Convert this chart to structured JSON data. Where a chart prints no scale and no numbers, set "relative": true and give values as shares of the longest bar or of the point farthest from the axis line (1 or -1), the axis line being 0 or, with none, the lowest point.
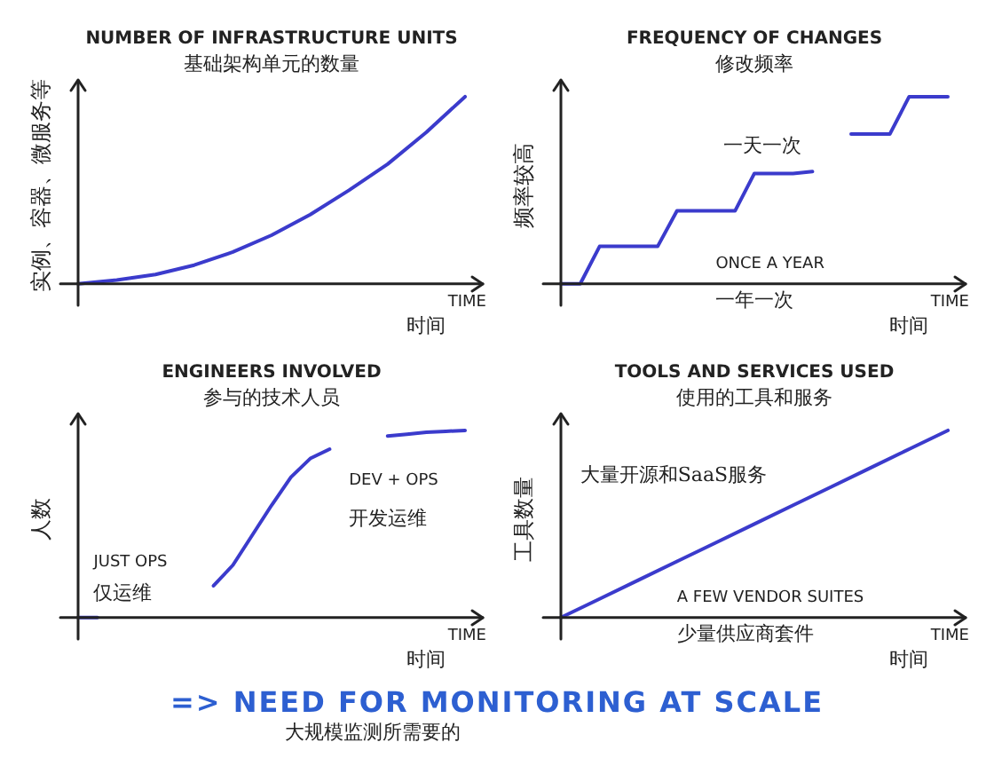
{
  "chart_data": [
    {
      "type": "line",
      "title": "NUMBER OF INFRASTRUCTURE UNITS",
      "subtitle": "基础架构单元的数量",
      "ylabel": "实例、容器、微服务等",
      "xlabel": "TIME",
      "relative": true,
      "marker": "none",
      "line_style": "solid",
      "categories": [
        null,
        null,
        null,
        null,
        null,
        null,
        null,
        null,
        null,
        null,
        null
      ],
      "series": [
        {
          "color": "#3b3bcc",
          "values": [
            0,
            0.02,
            0.05,
            0.1,
            0.17,
            0.26,
            0.37,
            0.5,
            0.64,
            0.81,
            1
          ]
        }
      ],
      "annotations": [
        "时间"
      ]
    },
    {
      "type": "line",
      "title": "FREQUENCY OF CHANGES",
      "subtitle": "修改频率",
      "ylabel": "频率较高",
      "xlabel": "TIME",
      "relative": true,
      "marker": "none",
      "line_style": "solid",
      "categories": [
        null,
        null,
        null,
        null,
        null,
        null,
        null,
        null,
        null,
        null,
        null,
        null,
        null,
        null,
        null,
        null,
        null,
        null,
        null,
        null,
        null
      ],
      "series": [
        {
          "color": "#3b3bcc",
          "values": [
            0,
            0,
            0.2,
            0.2,
            0.2,
            0.2,
            0.39,
            0.39,
            0.39,
            0.39,
            0.59,
            0.59,
            0.59,
            0.6,
            null,
            null,
            null,
            null,
            null,
            null,
            null
          ]
        },
        {
          "color": "#3b3bcc",
          "values": [
            null,
            null,
            null,
            null,
            null,
            null,
            null,
            null,
            null,
            null,
            null,
            null,
            null,
            null,
            null,
            0.8,
            0.8,
            0.8,
            1,
            1,
            1
          ]
        }
      ],
      "annotations": [
        "ONCE A YEAR",
        "一年一次",
        "一天一次",
        "时间"
      ]
    },
    {
      "type": "line",
      "title": "ENGINEERS INVOLVED",
      "subtitle": "参与的技术人员",
      "ylabel": "人数",
      "xlabel": "TIME",
      "relative": true,
      "marker": "none",
      "line_style": "solid",
      "categories": [
        null,
        null,
        null,
        null,
        null,
        null,
        null,
        null,
        null,
        null,
        null,
        null,
        null,
        null,
        null,
        null,
        null,
        null,
        null,
        null,
        null
      ],
      "series": [
        {
          "color": "#3b3bcc",
          "values": [
            0,
            0,
            null,
            null,
            null,
            null,
            null,
            null,
            null,
            null,
            null,
            null,
            null,
            null,
            null,
            null,
            null,
            null,
            null,
            null,
            null
          ]
        },
        {
          "color": "#3b3bcc",
          "values": [
            null,
            null,
            null,
            null,
            null,
            null,
            null,
            0.17,
            0.28,
            0.44,
            0.6,
            0.75,
            0.85,
            0.9,
            null,
            null,
            null,
            null,
            null,
            null,
            null
          ]
        },
        {
          "color": "#3b3bcc",
          "values": [
            null,
            null,
            null,
            null,
            null,
            null,
            null,
            null,
            null,
            null,
            null,
            null,
            null,
            null,
            null,
            null,
            0.97,
            0.98,
            0.99,
            0.995,
            1
          ]
        }
      ],
      "annotations": [
        "JUST OPS",
        "仅运维",
        "DEV + OPS",
        "开发运维",
        "时间"
      ]
    },
    {
      "type": "line",
      "title": "TOOLS AND SERVICES USED",
      "subtitle": "使用的工具和服务",
      "ylabel": "工具数量",
      "xlabel": "TIME",
      "relative": true,
      "marker": "none",
      "line_style": "solid",
      "categories": [
        null,
        null,
        null,
        null,
        null,
        null,
        null,
        null,
        null,
        null,
        null
      ],
      "series": [
        {
          "color": "#3b3bcc",
          "values": [
            0,
            0.1,
            0.2,
            0.3,
            0.4,
            0.5,
            0.6,
            0.7,
            0.8,
            0.9,
            1
          ]
        }
      ],
      "annotations": [
        "大量开源和SaaS服务",
        "A FEW VENDOR SUITES",
        "少量供应商套件",
        "时间"
      ]
    },
    {
      "type": "other",
      "title": "=> NEED FOR MONITORING AT SCALE",
      "subtitle": "大规模监测所需要的"
    }
  ]
}
